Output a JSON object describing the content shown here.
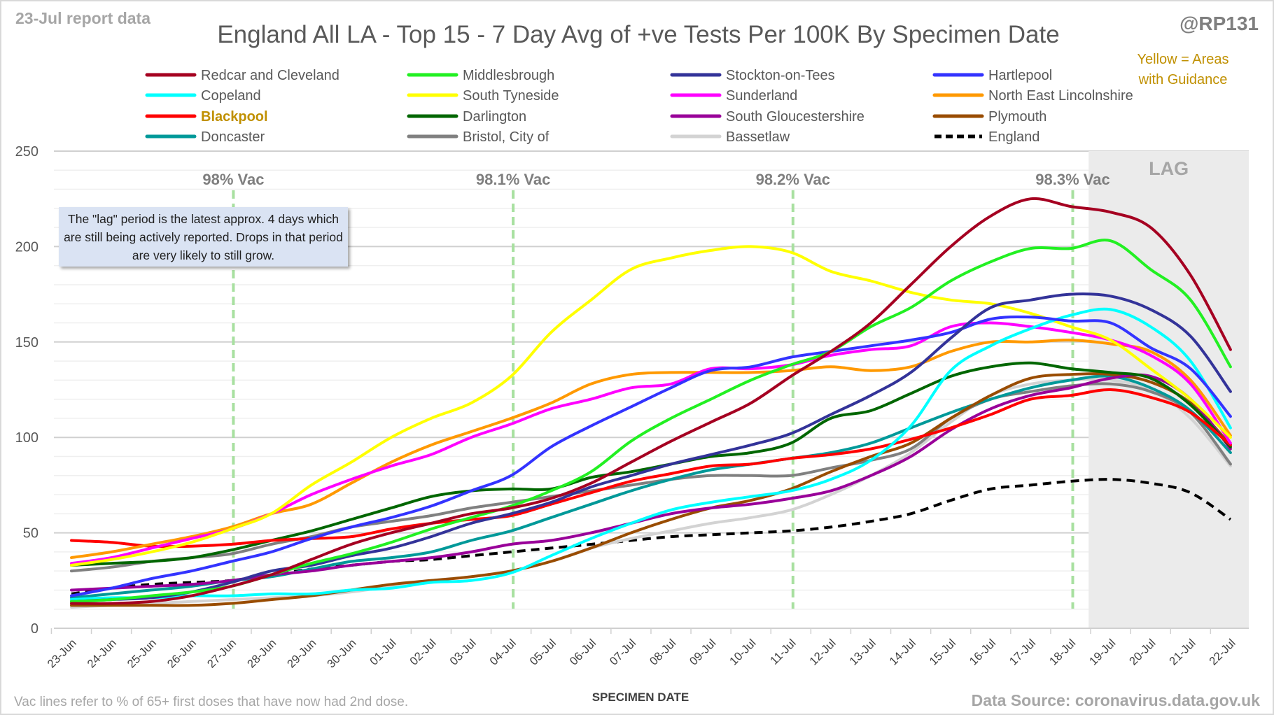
{
  "header": {
    "report_label": "23-Jul report data",
    "handle": "@RP131",
    "guidance_line1": "Yellow = Areas",
    "guidance_line2": "with Guidance"
  },
  "note": "The \"lag\" period is the latest approx. 4 days which are still being actively reported.  Drops in that period are very likely to still grow.",
  "footer": {
    "vac_note": "Vac lines refer to % of 65+ first doses that have now had 2nd dose.",
    "source": "Data Source: coronavirus.data.gov.uk"
  },
  "colors": {
    "guidance": "#c09000",
    "lag_band": "#ebebeb",
    "vac_line": "#a8e0a0"
  },
  "chart_data": {
    "type": "line",
    "title": "England All LA - Top 15 - 7 Day Avg of +ve Tests Per 100K By Specimen Date",
    "xlabel": "SPECIMEN DATE",
    "ylabel": "",
    "ylim": [
      0,
      250
    ],
    "yticks": [
      0,
      50,
      100,
      150,
      200,
      250
    ],
    "grid": true,
    "legend_placement": "top",
    "x": [
      "23-Jun",
      "24-Jun",
      "25-Jun",
      "26-Jun",
      "27-Jun",
      "28-Jun",
      "29-Jun",
      "30-Jun",
      "01-Jul",
      "02-Jul",
      "03-Jul",
      "04-Jul",
      "05-Jul",
      "06-Jul",
      "07-Jul",
      "08-Jul",
      "09-Jul",
      "10-Jul",
      "11-Jul",
      "12-Jul",
      "13-Jul",
      "14-Jul",
      "15-Jul",
      "16-Jul",
      "17-Jul",
      "18-Jul",
      "19-Jul",
      "20-Jul",
      "21-Jul",
      "22-Jul"
    ],
    "lag_region": {
      "from": "18-Jul",
      "to": "22-Jul",
      "label": "LAG"
    },
    "vac_markers": [
      {
        "date": "27-Jun",
        "label": "98% Vac"
      },
      {
        "date": "04-Jul",
        "label": "98.1% Vac"
      },
      {
        "date": "11-Jul",
        "label": "98.2% Vac"
      },
      {
        "date": "18-Jul",
        "label": "98.3% Vac"
      }
    ],
    "series": [
      {
        "name": "Redcar and Cleveland",
        "color": "#a50021",
        "values": [
          13,
          13,
          14,
          17,
          22,
          28,
          36,
          44,
          50,
          55,
          60,
          63,
          68,
          76,
          87,
          98,
          108,
          118,
          132,
          145,
          160,
          180,
          200,
          216,
          225,
          221,
          218,
          210,
          185,
          146
        ]
      },
      {
        "name": "Middlesbrough",
        "color": "#22f022",
        "values": [
          14,
          15,
          17,
          19,
          22,
          28,
          34,
          39,
          45,
          52,
          58,
          64,
          72,
          82,
          98,
          110,
          120,
          130,
          138,
          145,
          158,
          168,
          182,
          192,
          199,
          199,
          203,
          188,
          172,
          137
        ]
      },
      {
        "name": "Stockton-on-Tees",
        "color": "#333399",
        "values": [
          14,
          15,
          16,
          19,
          24,
          30,
          33,
          38,
          42,
          48,
          55,
          60,
          66,
          74,
          80,
          86,
          91,
          96,
          102,
          112,
          122,
          134,
          152,
          168,
          172,
          175,
          174,
          167,
          153,
          124
        ]
      },
      {
        "name": "Hartlepool",
        "color": "#3333ff",
        "values": [
          17,
          21,
          26,
          30,
          35,
          40,
          47,
          53,
          58,
          64,
          72,
          80,
          95,
          106,
          116,
          126,
          135,
          137,
          142,
          145,
          148,
          151,
          155,
          162,
          163,
          161,
          160,
          147,
          136,
          111
        ]
      },
      {
        "name": "Copeland",
        "color": "#00ffff",
        "values": [
          15,
          16,
          16,
          17,
          17,
          18,
          18,
          20,
          21,
          24,
          25,
          29,
          38,
          47,
          55,
          62,
          66,
          69,
          72,
          78,
          88,
          106,
          135,
          148,
          157,
          164,
          167,
          158,
          140,
          105
        ]
      },
      {
        "name": "South Tyneside",
        "color": "#ffff00",
        "values": [
          33,
          36,
          40,
          45,
          52,
          60,
          75,
          87,
          100,
          110,
          118,
          132,
          155,
          172,
          188,
          194,
          198,
          200,
          197,
          187,
          182,
          176,
          172,
          170,
          165,
          158,
          151,
          136,
          120,
          100
        ]
      },
      {
        "name": "Sunderland",
        "color": "#ff00ff",
        "values": [
          34,
          37,
          42,
          47,
          52,
          60,
          70,
          78,
          85,
          91,
          100,
          107,
          115,
          120,
          126,
          128,
          136,
          136,
          138,
          143,
          146,
          148,
          158,
          160,
          158,
          155,
          151,
          143,
          128,
          97
        ]
      },
      {
        "name": "North East Lincolnshire",
        "color": "#ff9900",
        "values": [
          37,
          40,
          44,
          48,
          53,
          60,
          65,
          76,
          87,
          96,
          103,
          110,
          118,
          128,
          133,
          134,
          134,
          134,
          135,
          137,
          135,
          137,
          145,
          150,
          150,
          151,
          149,
          145,
          130,
          101
        ]
      },
      {
        "name": "Blackpool",
        "color": "#ff0000",
        "highlight": true,
        "values": [
          46,
          45,
          43,
          43,
          44,
          46,
          47,
          48,
          52,
          55,
          57,
          59,
          65,
          71,
          77,
          81,
          85,
          86,
          89,
          91,
          94,
          99,
          105,
          112,
          120,
          122,
          125,
          121,
          113,
          96
        ]
      },
      {
        "name": "Darlington",
        "color": "#006600",
        "values": [
          33,
          34,
          35,
          37,
          41,
          46,
          51,
          57,
          63,
          69,
          72,
          73,
          73,
          79,
          82,
          86,
          90,
          92,
          97,
          110,
          114,
          123,
          132,
          137,
          139,
          136,
          134,
          131,
          117,
          95
        ]
      },
      {
        "name": "South Gloucestershire",
        "color": "#990099",
        "values": [
          20,
          21,
          22,
          23,
          25,
          28,
          30,
          33,
          35,
          37,
          40,
          44,
          46,
          50,
          55,
          60,
          63,
          65,
          68,
          72,
          80,
          90,
          104,
          115,
          122,
          126,
          131,
          132,
          120,
          94
        ]
      },
      {
        "name": "Plymouth",
        "color": "#994c00",
        "values": [
          12,
          12,
          12,
          12,
          13,
          15,
          17,
          20,
          23,
          25,
          27,
          30,
          35,
          42,
          50,
          57,
          63,
          67,
          73,
          82,
          90,
          97,
          110,
          122,
          131,
          133,
          133,
          129,
          118,
          96
        ]
      },
      {
        "name": "Doncaster",
        "color": "#009999",
        "values": [
          16,
          18,
          20,
          22,
          25,
          27,
          31,
          35,
          37,
          40,
          46,
          51,
          58,
          65,
          72,
          78,
          83,
          86,
          89,
          92,
          97,
          105,
          113,
          120,
          126,
          130,
          132,
          126,
          114,
          92
        ]
      },
      {
        "name": "Bristol, City of",
        "color": "#808080",
        "values": [
          30,
          32,
          35,
          37,
          39,
          44,
          48,
          53,
          56,
          59,
          63,
          66,
          69,
          72,
          75,
          78,
          80,
          80,
          80,
          84,
          88,
          94,
          110,
          120,
          124,
          127,
          128,
          124,
          113,
          86
        ]
      },
      {
        "name": "Bassetlaw",
        "color": "#d3d3d3",
        "values": [
          11,
          12,
          13,
          14,
          15,
          16,
          17,
          19,
          22,
          25,
          27,
          30,
          35,
          42,
          47,
          51,
          55,
          58,
          62,
          70,
          80,
          92,
          108,
          122,
          128,
          130,
          130,
          125,
          110,
          85
        ]
      },
      {
        "name": "England",
        "color": "#000000",
        "dashed": true,
        "values": [
          18,
          21,
          23,
          24,
          25,
          28,
          31,
          33,
          35,
          36,
          38,
          40,
          42,
          44,
          46,
          48,
          49,
          50,
          51,
          53,
          56,
          60,
          67,
          73,
          75,
          77,
          78,
          76,
          71,
          57
        ]
      }
    ]
  }
}
